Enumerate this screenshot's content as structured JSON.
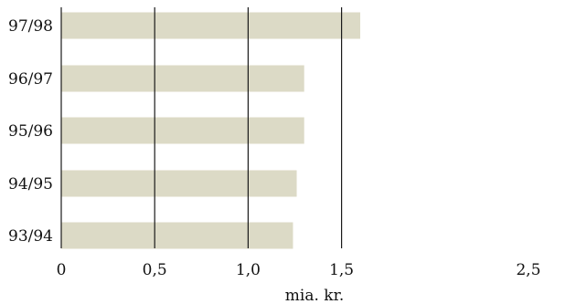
{
  "chart_data": {
    "type": "bar",
    "orientation": "horizontal",
    "categories": [
      "97/98",
      "96/97",
      "95/96",
      "94/95",
      "93/94"
    ],
    "values": [
      1.6,
      1.3,
      1.3,
      1.26,
      1.24
    ],
    "xlabel": "mia. kr.",
    "ylabel": "",
    "xlim": [
      0,
      2.5
    ],
    "ticks": [
      0,
      0.5,
      1.0,
      1.5,
      2.5
    ],
    "tick_labels": [
      "0",
      "0,5",
      "1,0",
      "1,5",
      "2,5"
    ],
    "gridlines_at": [
      0.5,
      1.0,
      1.5
    ],
    "grid": true,
    "legend": "none",
    "bar_color": "#dcdac6",
    "line_color": "#1a1a1a"
  }
}
